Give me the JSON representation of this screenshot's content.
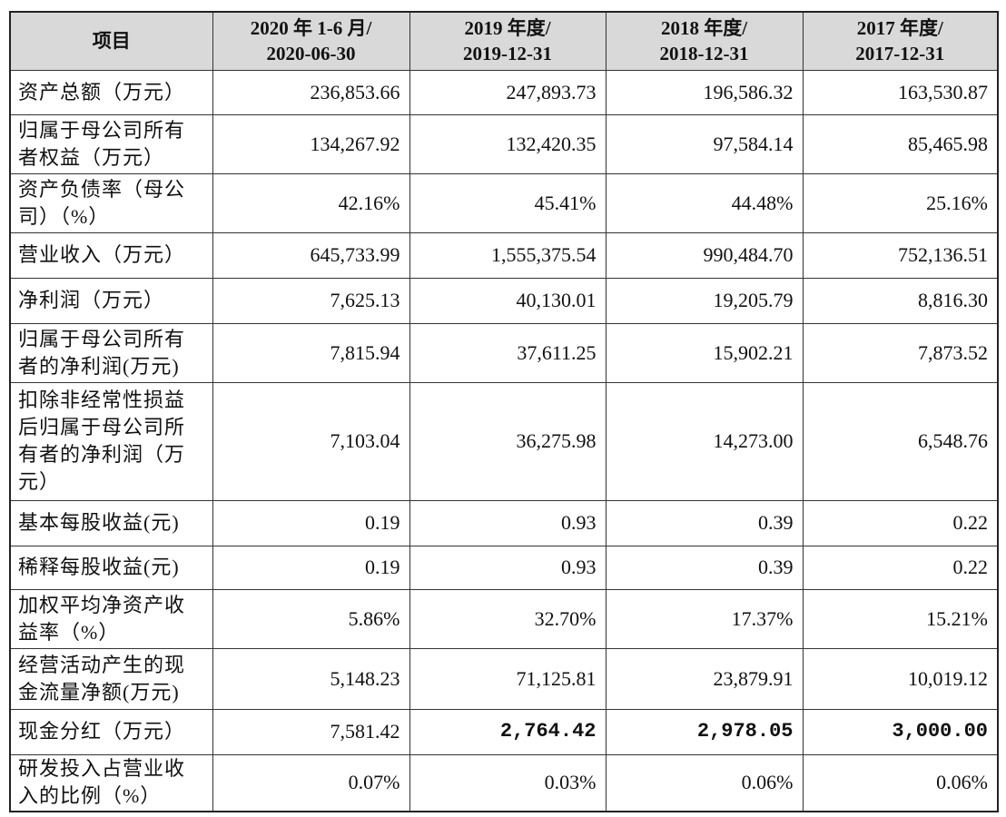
{
  "header": [
    [
      "项目"
    ],
    [
      "2020 年 1-6 月/",
      "2020-06-30"
    ],
    [
      "2019 年度/",
      "2019-12-31"
    ],
    [
      "2018 年度/",
      "2018-12-31"
    ],
    [
      "2017 年度/",
      "2017-12-31"
    ]
  ],
  "rows": [
    [
      "资产总额（万元）",
      "236,853.66",
      "247,893.73",
      "196,586.32",
      "163,530.87"
    ],
    [
      "归属于母公司所有者权益（万元）",
      "134,267.92",
      "132,420.35",
      "97,584.14",
      "85,465.98"
    ],
    [
      "资产负债率（母公司）（%）",
      "42.16%",
      "45.41%",
      "44.48%",
      "25.16%"
    ],
    [
      "营业收入（万元）",
      "645,733.99",
      "1,555,375.54",
      "990,484.70",
      "752,136.51"
    ],
    [
      "净利润（万元）",
      "7,625.13",
      "40,130.01",
      "19,205.79",
      "8,816.30"
    ],
    [
      "归属于母公司所有者的净利润(万元)",
      "7,815.94",
      "37,611.25",
      "15,902.21",
      "7,873.52"
    ],
    [
      "扣除非经常性损益后归属于母公司所有者的净利润（万元）",
      "7,103.04",
      "36,275.98",
      "14,273.00",
      "6,548.76"
    ],
    [
      "基本每股收益(元)",
      "0.19",
      "0.93",
      "0.39",
      "0.22"
    ],
    [
      "稀释每股收益(元)",
      "0.19",
      "0.93",
      "0.39",
      "0.22"
    ],
    [
      "加权平均净资产收益率（%）",
      "5.86%",
      "32.70%",
      "17.37%",
      "15.21%"
    ],
    [
      "经营活动产生的现金流量净额(万元)",
      "5,148.23",
      "71,125.81",
      "23,879.91",
      "10,019.12"
    ],
    [
      "现金分红（万元）",
      "7,581.42",
      "2,764.42",
      "2,978.05",
      "3,000.00"
    ],
    [
      "研发投入占营业收入的比例（%）",
      "0.07%",
      "0.03%",
      "0.06%",
      "0.06%"
    ]
  ]
}
